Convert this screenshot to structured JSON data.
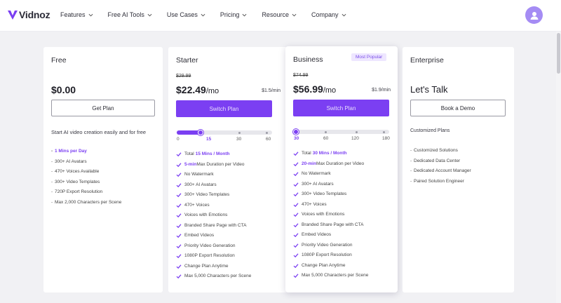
{
  "header": {
    "logo_text": "Vidnoz",
    "nav": [
      "Features",
      "Free AI Tools",
      "Use Cases",
      "Pricing",
      "Resource",
      "Company"
    ]
  },
  "plans": {
    "free": {
      "name": "Free",
      "price": "$0.00",
      "button": "Get Plan",
      "description": "Start AI video creation easily and for free",
      "features": [
        "1 Mins per Day",
        "300+ AI Avatars",
        "470+ Voices Available",
        "300+ Video Templates",
        "720P Export Resolution",
        "Max 2,000 Characters per Scene"
      ]
    },
    "starter": {
      "name": "Starter",
      "old_price": "$29.99",
      "price": "$22.49",
      "per": "/mo",
      "per_min": "$1.5/min",
      "button": "Switch Plan",
      "slider": {
        "ticks": [
          "0",
          "15",
          "30",
          "60"
        ],
        "selected": "15",
        "fill_fraction": 0.25
      },
      "total": {
        "prefix": "Total ",
        "value": "15 Mins / Month"
      },
      "max_duration": {
        "value": "5-min",
        "suffix": " Max Duration per Video"
      },
      "features": [
        "No Watermark",
        "300+ AI Avatars",
        "300+ Video Templates",
        "470+ Voices",
        "Voices with Emotions",
        "Branded Share Page with CTA",
        "Embed Videos",
        "Priority Video Generation",
        "1080P Export Resolution",
        "Change Plan Anytime",
        "Max 5,000 Characters per Scene"
      ]
    },
    "business": {
      "name": "Business",
      "badge": "Most Popular",
      "old_price": "$74.99",
      "price": "$56.99",
      "per": "/mo",
      "per_min": "$1.9/min",
      "button": "Switch Plan",
      "slider": {
        "ticks": [
          "30",
          "60",
          "120",
          "180"
        ],
        "selected": "30",
        "fill_fraction": 0.0
      },
      "total": {
        "prefix": "Total ",
        "value": "30 Mins / Month"
      },
      "max_duration": {
        "value": "20-min",
        "suffix": " Max Duration per Video"
      },
      "features": [
        "No Watermark",
        "300+ AI Avatars",
        "300+ Video Templates",
        "470+ Voices",
        "Voices with Emotions",
        "Branded Share Page with CTA",
        "Embed Videos",
        "Priority Video Generation",
        "1080P Export Resolution",
        "Change Plan Anytime",
        "Max 5,000 Characters per Scene"
      ]
    },
    "enterprise": {
      "name": "Enterprise",
      "headline": "Let's Talk",
      "button": "Book a Demo",
      "subtitle": "Customized Plans",
      "features": [
        "Customized Solutions",
        "Dedicated Data Center",
        "Dedicated Account Manager",
        "Paired Solution Engineer"
      ]
    }
  },
  "colors": {
    "accent": "#7b3ff2",
    "badge_bg": "#eee6ff",
    "page_bg": "#f1f1f4"
  }
}
